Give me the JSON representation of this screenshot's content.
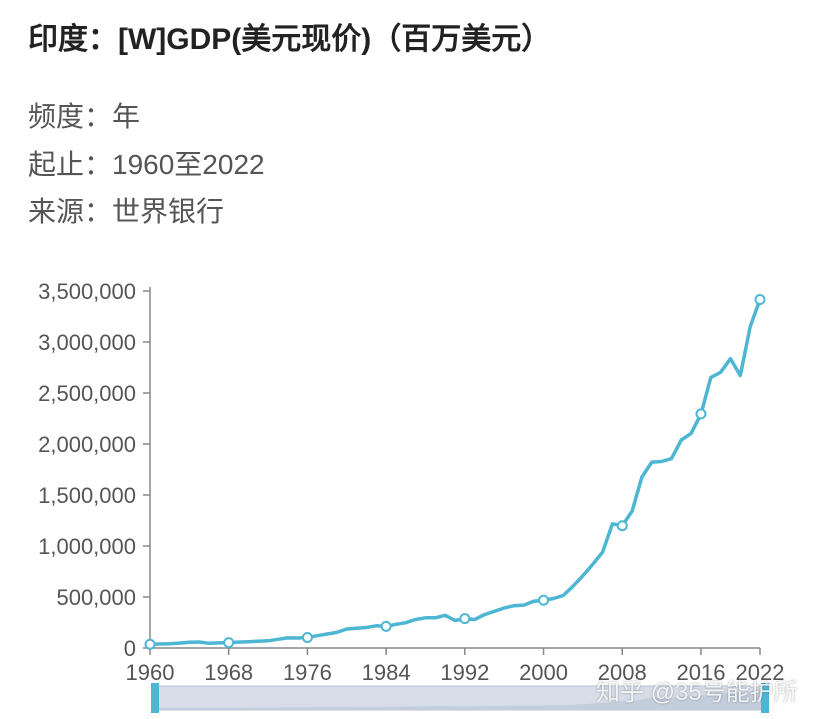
{
  "header": {
    "title": "印度：[W]GDP(美元现价)（百万美元）",
    "meta": [
      {
        "key": "频度：",
        "value": "年"
      },
      {
        "key": "起止：",
        "value": "1960至2022"
      },
      {
        "key": "来源：",
        "value": "世界银行"
      }
    ]
  },
  "watermark": "知乎 @35号能护所",
  "colors": {
    "line": "#4db6d3",
    "axis": "#888888",
    "slider": "#d6dde8",
    "slider_handle": "#4db6d3"
  },
  "chart_data": {
    "type": "line",
    "title": "",
    "xlabel": "",
    "ylabel": "",
    "x_ticks": [
      "1960",
      "1968",
      "1976",
      "1984",
      "1992",
      "2000",
      "2008",
      "2016",
      "2022"
    ],
    "y_ticks": [
      "0",
      "500,000",
      "1,000,000",
      "1,500,000",
      "2,000,000",
      "2,500,000",
      "3,000,000",
      "3,500,000"
    ],
    "xlim": [
      1960,
      2022
    ],
    "ylim": [
      0,
      3500000
    ],
    "grid": false,
    "series": [
      {
        "values": [
          [
            1960,
            37000
          ],
          [
            1961,
            39000
          ],
          [
            1962,
            42000
          ],
          [
            1963,
            48000
          ],
          [
            1964,
            56000
          ],
          [
            1965,
            59000
          ],
          [
            1966,
            46000
          ],
          [
            1967,
            50000
          ],
          [
            1968,
            53000
          ],
          [
            1969,
            58000
          ],
          [
            1970,
            62000
          ],
          [
            1971,
            67000
          ],
          [
            1972,
            71000
          ],
          [
            1973,
            85000
          ],
          [
            1974,
            99000
          ],
          [
            1975,
            98000
          ],
          [
            1976,
            103000
          ],
          [
            1977,
            121000
          ],
          [
            1978,
            137000
          ],
          [
            1979,
            153000
          ],
          [
            1980,
            186000
          ],
          [
            1981,
            193000
          ],
          [
            1982,
            201000
          ],
          [
            1983,
            218000
          ],
          [
            1984,
            212000
          ],
          [
            1985,
            232000
          ],
          [
            1986,
            248000
          ],
          [
            1987,
            279000
          ],
          [
            1988,
            296000
          ],
          [
            1989,
            296000
          ],
          [
            1990,
            321000
          ],
          [
            1991,
            270000
          ],
          [
            1992,
            288000
          ],
          [
            1993,
            279000
          ],
          [
            1994,
            327000
          ],
          [
            1995,
            360000
          ],
          [
            1996,
            392000
          ],
          [
            1997,
            415000
          ],
          [
            1998,
            421000
          ],
          [
            1999,
            458000
          ],
          [
            2000,
            468000
          ],
          [
            2001,
            485000
          ],
          [
            2002,
            515000
          ],
          [
            2003,
            607000
          ],
          [
            2004,
            709000
          ],
          [
            2005,
            820000
          ],
          [
            2006,
            940000
          ],
          [
            2007,
            1217000
          ],
          [
            2008,
            1199000
          ],
          [
            2009,
            1342000
          ],
          [
            2010,
            1676000
          ],
          [
            2011,
            1823000
          ],
          [
            2012,
            1828000
          ],
          [
            2013,
            1857000
          ],
          [
            2014,
            2039000
          ],
          [
            2015,
            2104000
          ],
          [
            2016,
            2295000
          ],
          [
            2017,
            2652000
          ],
          [
            2018,
            2703000
          ],
          [
            2019,
            2836000
          ],
          [
            2020,
            2672000
          ],
          [
            2021,
            3150000
          ],
          [
            2022,
            3417000
          ]
        ],
        "markers": [
          1960,
          1968,
          1976,
          1984,
          1992,
          2000,
          2008,
          2016,
          2022
        ]
      }
    ]
  }
}
